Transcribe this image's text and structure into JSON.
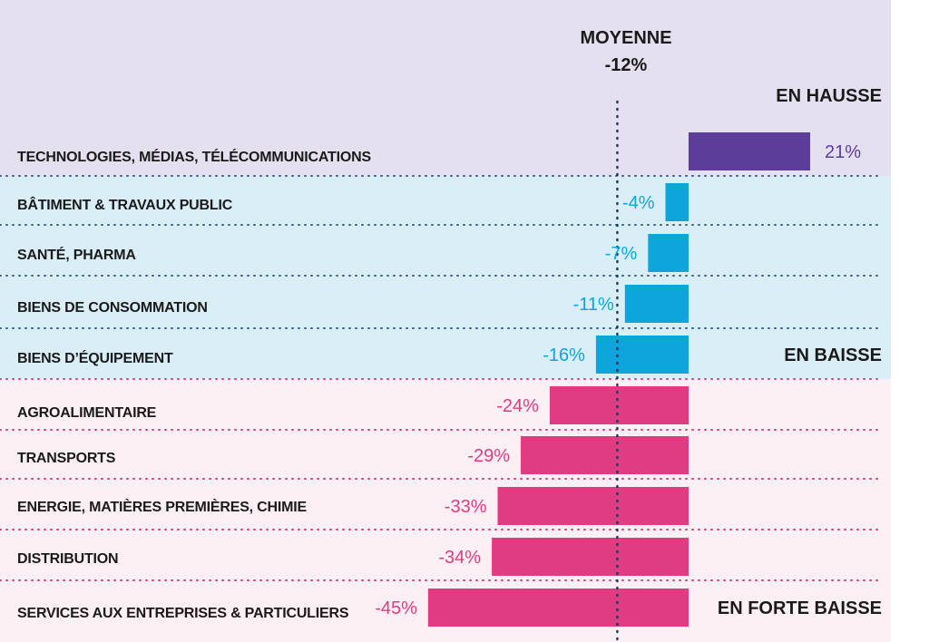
{
  "chart_data": {
    "type": "bar",
    "orientation": "horizontal",
    "average": {
      "label": "MOYENNE",
      "value_label": "-12%",
      "value": -12
    },
    "categories": [
      "TECHNOLOGIES, MÉDIAS, TÉLÉCOMMUNICATIONS",
      "BÂTIMENT & TRAVAUX PUBLIC",
      "SANTÉ, PHARMA",
      "BIENS DE CONSOMMATION",
      "BIENS D’ÉQUIPEMENT",
      "AGROALIMENTAIRE",
      "TRANSPORTS",
      "ENERGIE, MATIÈRES PREMIÈRES, CHIMIE",
      "DISTRIBUTION",
      "SERVICES AUX  ENTREPRISES & PARTICULIERS"
    ],
    "values": [
      21,
      -4,
      -7,
      -11,
      -16,
      -24,
      -29,
      -33,
      -34,
      -45
    ],
    "value_labels": [
      "21%",
      "-4%",
      "-7%",
      "-11%",
      "-16%",
      "-24%",
      "-29%",
      "-33%",
      "-34%",
      "-45%"
    ],
    "groups": [
      {
        "name": "EN HAUSSE",
        "rows": [
          0
        ],
        "bg_color": "#e5e0f0",
        "bar_color": "#5c3d99",
        "label_color": "#5c3d99",
        "line_color": "#5c3d99"
      },
      {
        "name": "EN BAISSE",
        "rows": [
          1,
          2,
          3,
          4
        ],
        "bg_color": "#daeef8",
        "bar_color": "#0ea5dd",
        "label_color": "#0ea5dd",
        "line_color": "#3a5f98"
      },
      {
        "name": "EN FORTE BAISSE",
        "rows": [
          5,
          6,
          7,
          8,
          9
        ],
        "bg_color": "#fdf0f5",
        "bar_color": "#e03c82",
        "label_color": "#e03c82",
        "line_color": "#e03c82"
      }
    ],
    "xlim": [
      -45,
      21
    ],
    "colors": {
      "text": "#1a1a1a",
      "average_line": "#1e3a5f"
    }
  }
}
